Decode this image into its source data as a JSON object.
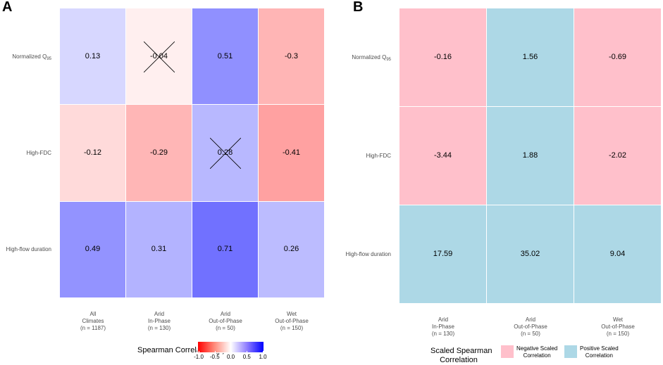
{
  "chart_data": [
    {
      "panel": "A",
      "type": "heatmap",
      "title": "",
      "rows": [
        "Normalized Q95",
        "High-FDC",
        "High-flow duration"
      ],
      "row_label_main": [
        "Normalized Q",
        "High-FDC",
        "High-flow duration"
      ],
      "row_label_sub": [
        "95",
        "",
        ""
      ],
      "columns": [
        [
          "All",
          "Climates",
          "(n = 1187)"
        ],
        [
          "Arid",
          "In-Phase",
          "(n = 130)"
        ],
        [
          "Arid",
          "Out-of-Phase",
          "(n = 50)"
        ],
        [
          "Wet",
          "Out-of-Phase",
          "(n = 150)"
        ]
      ],
      "values": [
        [
          0.13,
          -0.04,
          0.51,
          -0.3
        ],
        [
          -0.12,
          -0.29,
          0.28,
          -0.41
        ],
        [
          0.49,
          0.31,
          0.71,
          0.26
        ]
      ],
      "labels": [
        [
          "0.13",
          "-0.04",
          "0.51",
          "-0.3"
        ],
        [
          "-0.12",
          "-0.29",
          "0.28",
          "-0.41"
        ],
        [
          "0.49",
          "0.31",
          "0.71",
          "0.26"
        ]
      ],
      "crossed_out": [
        [
          false,
          true,
          false,
          false
        ],
        [
          false,
          false,
          true,
          false
        ],
        [
          false,
          false,
          false,
          false
        ]
      ],
      "color_scale": {
        "low": "#ff0000",
        "mid": "#ffffff",
        "high": "#0000ff",
        "limits": [
          -1,
          1
        ]
      },
      "legend": {
        "title": "Spearman Correlation (ρ)",
        "ticks": [
          "-1.0",
          "-0.5",
          "0.0",
          "0.5",
          "1.0"
        ],
        "tick_values": [
          -1,
          -0.5,
          0,
          0.5,
          1
        ]
      }
    },
    {
      "panel": "B",
      "type": "heatmap",
      "title": "",
      "rows": [
        "Normalized Q95",
        "High-FDC",
        "High-flow duration"
      ],
      "row_label_main": [
        "Normalized Q",
        "High-FDC",
        "High-flow duration"
      ],
      "row_label_sub": [
        "95",
        "",
        ""
      ],
      "columns": [
        [
          "Arid",
          "In-Phase",
          "(n = 130)"
        ],
        [
          "Arid",
          "Out-of-Phase",
          "(n = 50)"
        ],
        [
          "Wet",
          "Out-of-Phase",
          "(n = 150)"
        ]
      ],
      "values": [
        [
          -0.16,
          1.56,
          -0.69
        ],
        [
          -3.44,
          1.88,
          -2.02
        ],
        [
          17.59,
          35.02,
          9.04
        ]
      ],
      "labels": [
        [
          "-0.16",
          "1.56",
          "-0.69"
        ],
        [
          "-3.44",
          "1.88",
          "-2.02"
        ],
        [
          "17.59",
          "35.02",
          "9.04"
        ]
      ],
      "color_scale": {
        "negative": "#ffc0cb",
        "positive": "#add8e6"
      },
      "legend": {
        "title_lines": [
          "Scaled Spearman",
          "Correlation"
        ],
        "items": [
          {
            "lines": [
              "Negative Scaled",
              "Correlation"
            ],
            "color": "#ffc0cb"
          },
          {
            "lines": [
              "Positive Scaled",
              "Correlation"
            ],
            "color": "#add8e6"
          }
        ]
      }
    }
  ],
  "panel_labels": [
    "A",
    "B"
  ]
}
